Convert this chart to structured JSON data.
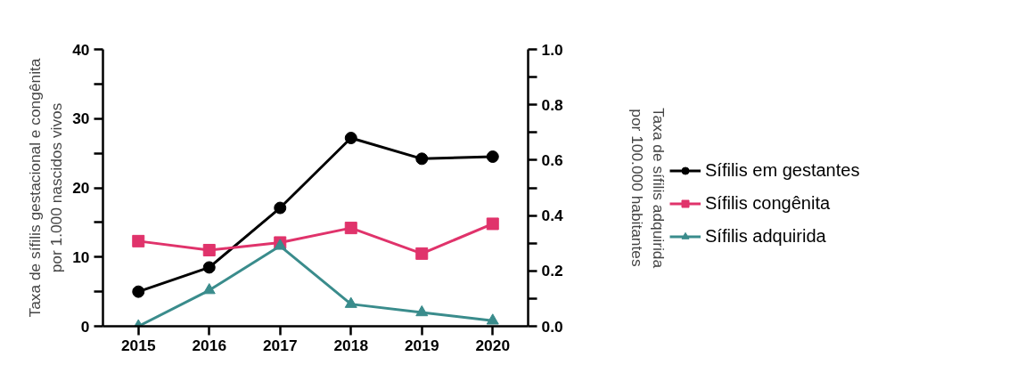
{
  "chart_data": {
    "type": "line",
    "x": [
      2015,
      2016,
      2017,
      2018,
      2019,
      2020
    ],
    "xlim": [
      2014.5,
      2020.5
    ],
    "xticks": [
      2015,
      2016,
      2017,
      2018,
      2019,
      2020
    ],
    "ylabel": "Taxa de sífilis gestacional e congênita\npor 1.000 nascidos vivos",
    "y2label": "Taxa de sífilis adquirida\npor 100.000 habitantes",
    "ylim": [
      0,
      40
    ],
    "yticks": [
      0,
      {
        "value": 5,
        "label": null
      },
      10,
      {
        "value": 15,
        "label": null
      },
      20,
      {
        "value": 25,
        "label": null
      },
      30,
      {
        "value": 35,
        "label": null
      },
      40
    ],
    "y2lim": [
      0,
      1.0
    ],
    "y2ticks": [
      {
        "value": 0,
        "label": "0.0"
      },
      {
        "value": 0.1,
        "label": null
      },
      0.2,
      {
        "value": 0.3,
        "label": null
      },
      0.4,
      {
        "value": 0.5,
        "label": null
      },
      0.6,
      {
        "value": 0.7,
        "label": null
      },
      0.8,
      {
        "value": 0.9,
        "label": null
      },
      {
        "value": 1.0,
        "label": "1.0"
      }
    ],
    "grid": false,
    "legend": "right",
    "series": [
      {
        "name": "Sífilis em gestantes",
        "color": "#000000",
        "marker": "circle",
        "values": [
          5.0,
          8.5,
          17.1,
          27.2,
          24.2,
          24.5
        ]
      },
      {
        "name": "Sífilis congênita",
        "color": "#e0336b",
        "marker": "square",
        "values": [
          12.3,
          11.0,
          12.1,
          14.2,
          10.5,
          14.8
        ]
      },
      {
        "name": "Sífilis adquirida",
        "color": "#3a8c8c",
        "marker": "triangle",
        "axis": "y2",
        "values": [
          0.0,
          0.13,
          0.29,
          0.08,
          0.05,
          0.02
        ]
      }
    ]
  }
}
